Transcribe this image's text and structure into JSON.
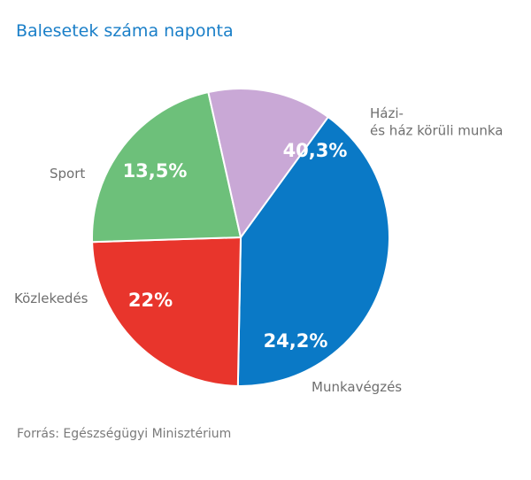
{
  "title": "Balesetek száma naponta",
  "source": "Forrás: Egészségügyi Minisztérium",
  "chart_data": {
    "type": "pie",
    "title": "Balesetek száma naponta",
    "slices": [
      {
        "label": [
          "Házi-",
          "és ház körüli munka"
        ],
        "value": 40.3,
        "value_label": "40,3%",
        "color": "#0a79c6"
      },
      {
        "label": [
          "Munkavégzés"
        ],
        "value": 24.2,
        "value_label": "24,2%",
        "color": "#e8352c"
      },
      {
        "label": [
          "Közlekedés"
        ],
        "value": 22,
        "value_label": "22%",
        "color": "#6dc07a"
      },
      {
        "label": [
          "Sport"
        ],
        "value": 13.5,
        "value_label": "13,5%",
        "color": "#c9a8d6"
      }
    ],
    "legend": "none",
    "labels": "outside-category, inside-value"
  }
}
